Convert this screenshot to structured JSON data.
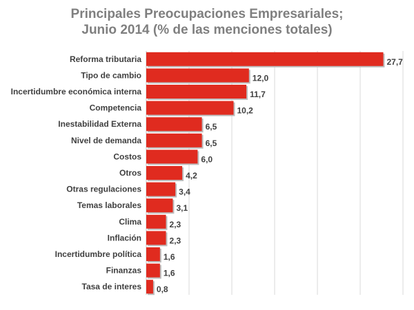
{
  "chart_data": {
    "type": "bar",
    "orientation": "horizontal",
    "title": "Principales Preocupaciones Empresariales;",
    "subtitle": "Junio 2014 (% de las menciones totales)",
    "categories": [
      "Reforma tributaria",
      "Tipo de cambio",
      "Incertidumbre económica interna",
      "Competencia",
      "Inestabilidad Externa",
      "Nivel de demanda",
      "Costos",
      "Otros",
      "Otras regulaciones",
      "Temas laborales",
      "Clima",
      "Inflación",
      "Incertidumbre política",
      "Finanzas",
      "Tasa de interes"
    ],
    "values": [
      27.7,
      12.0,
      11.7,
      10.2,
      6.5,
      6.5,
      6.0,
      4.2,
      3.4,
      3.1,
      2.3,
      2.3,
      1.6,
      1.6,
      0.8
    ],
    "value_labels": [
      "27,7",
      "12,0",
      "11,7",
      "10,2",
      "6,5",
      "6,5",
      "6,0",
      "4,2",
      "3,4",
      "3,1",
      "2,3",
      "2,3",
      "1,6",
      "1,6",
      "0,8"
    ],
    "xlim": [
      0,
      30
    ],
    "grid": true,
    "bar_color": "#e02b1f",
    "text_color": "#404040",
    "title_color": "#7f7f7f"
  }
}
